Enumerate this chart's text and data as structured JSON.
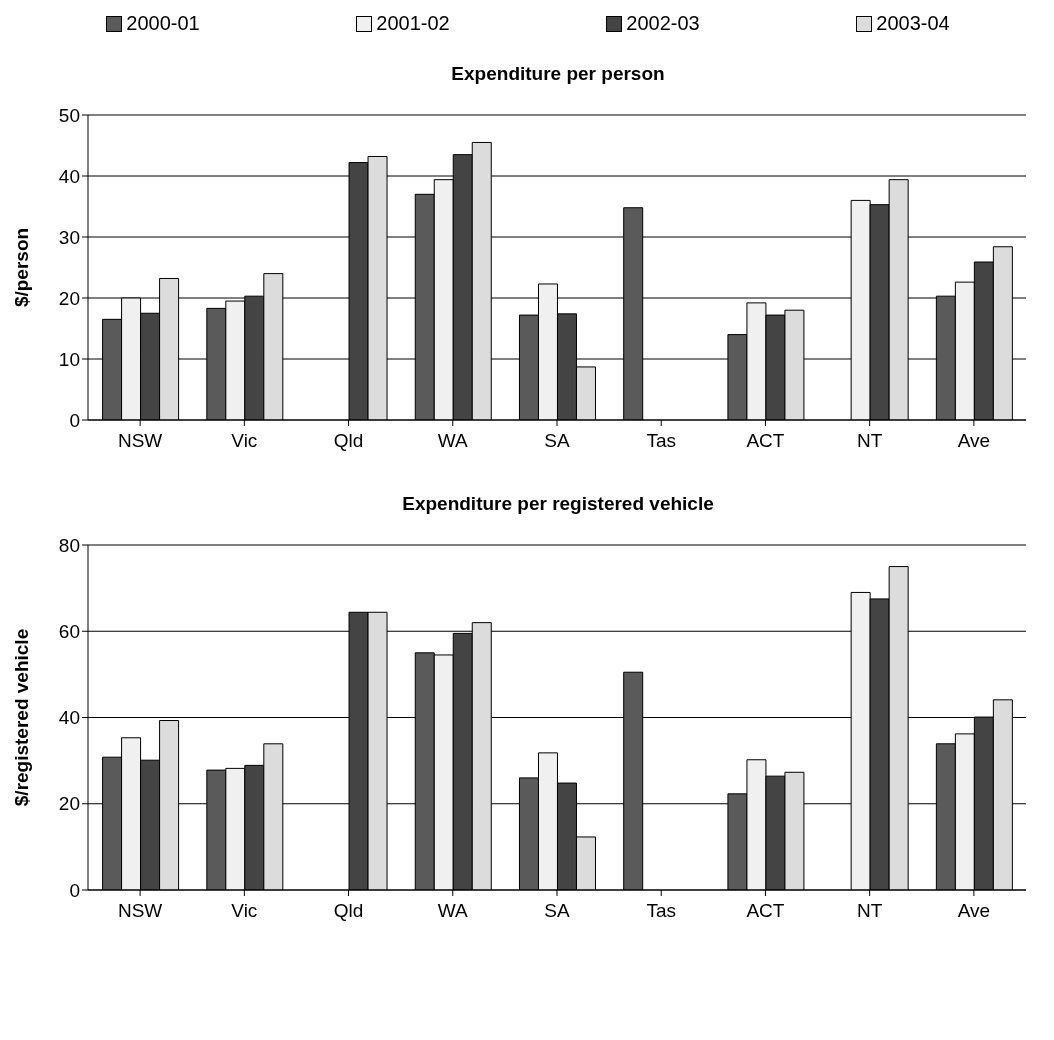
{
  "chart_data": [
    {
      "type": "bar",
      "title": "Expenditure per person",
      "ylabel": "$/person",
      "categories": [
        "NSW",
        "Vic",
        "Qld",
        "WA",
        "SA",
        "Tas",
        "ACT",
        "NT",
        "Ave"
      ],
      "series": [
        {
          "name": "2000-01",
          "color": "#5a5a5a",
          "values": [
            16.5,
            18.3,
            null,
            37,
            17.2,
            34.8,
            14,
            null,
            20.3
          ]
        },
        {
          "name": "2001-02",
          "color": "#f0f0f0",
          "values": [
            20,
            19.5,
            null,
            39.4,
            22.3,
            null,
            19.2,
            36,
            22.6
          ]
        },
        {
          "name": "2002-03",
          "color": "#444444",
          "values": [
            17.5,
            20.3,
            42.2,
            43.5,
            17.4,
            null,
            17.2,
            35.3,
            25.9
          ]
        },
        {
          "name": "2003-04",
          "color": "#dcdcdc",
          "values": [
            23.2,
            24,
            43.2,
            45.5,
            8.7,
            null,
            18,
            39.4,
            28.4
          ]
        }
      ],
      "ylim": [
        0,
        50
      ],
      "yticks": [
        0,
        10,
        20,
        30,
        40,
        50
      ],
      "grid": "y",
      "legend": "top"
    },
    {
      "type": "bar",
      "title": "Expenditure per registered vehicle",
      "ylabel": "$/registered vehicle",
      "categories": [
        "NSW",
        "Vic",
        "Qld",
        "WA",
        "SA",
        "Tas",
        "ACT",
        "NT",
        "Ave"
      ],
      "series": [
        {
          "color": "#5a5a5a",
          "values": [
            30.8,
            27.8,
            null,
            55,
            26,
            50.5,
            22.3,
            null,
            33.9
          ]
        },
        {
          "color": "#f0f0f0",
          "values": [
            35.3,
            28.2,
            null,
            54.5,
            31.8,
            null,
            30.2,
            69,
            36.2
          ]
        },
        {
          "color": "#444444",
          "values": [
            30.1,
            28.9,
            64.4,
            59.5,
            24.8,
            null,
            26.4,
            67.5,
            40.1
          ]
        },
        {
          "color": "#dcdcdc",
          "values": [
            39.3,
            33.9,
            64.4,
            62,
            12.3,
            null,
            27.3,
            75,
            44.1
          ]
        }
      ],
      "ylim": [
        0,
        80
      ],
      "yticks": [
        0,
        20,
        40,
        60,
        80
      ],
      "grid": "y"
    }
  ]
}
